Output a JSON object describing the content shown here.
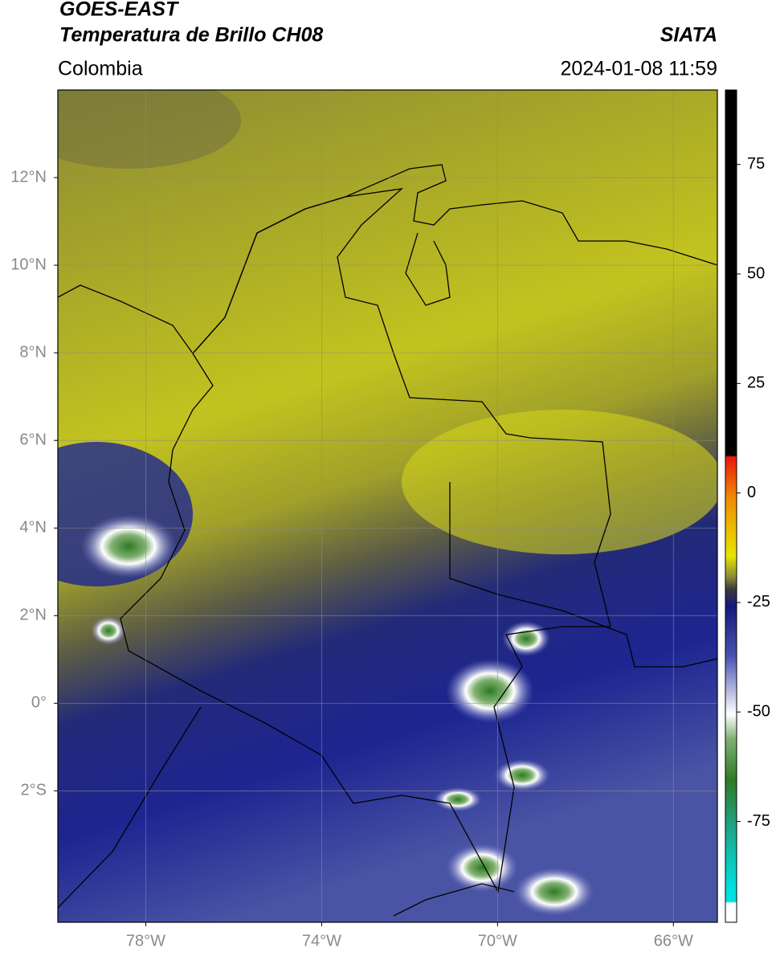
{
  "header": {
    "satellite": "GOES-EAST",
    "product": "Temperatura de Brillo CH08",
    "source": "SIATA",
    "region": "Colombia",
    "timestamp": "2024-01-08 11:59"
  },
  "map": {
    "xlim": [
      -80,
      -65
    ],
    "ylim": [
      -5,
      14
    ],
    "xticks": [
      {
        "value": -78,
        "label": "78°W"
      },
      {
        "value": -74,
        "label": "74°W"
      },
      {
        "value": -70,
        "label": "70°W"
      },
      {
        "value": -66,
        "label": "66°W"
      }
    ],
    "yticks": [
      {
        "value": 12,
        "label": "12°N"
      },
      {
        "value": 10,
        "label": "10°N"
      },
      {
        "value": 8,
        "label": "8°N"
      },
      {
        "value": 6,
        "label": "6°N"
      },
      {
        "value": 4,
        "label": "4°N"
      },
      {
        "value": 2,
        "label": "2°N"
      },
      {
        "value": 0,
        "label": "0°"
      },
      {
        "value": -2,
        "label": "2°S"
      }
    ],
    "grid": true
  },
  "colorbar": {
    "lim": [
      -98,
      92
    ],
    "ticks": [
      75,
      50,
      25,
      0,
      -25,
      -50,
      -75
    ]
  }
}
